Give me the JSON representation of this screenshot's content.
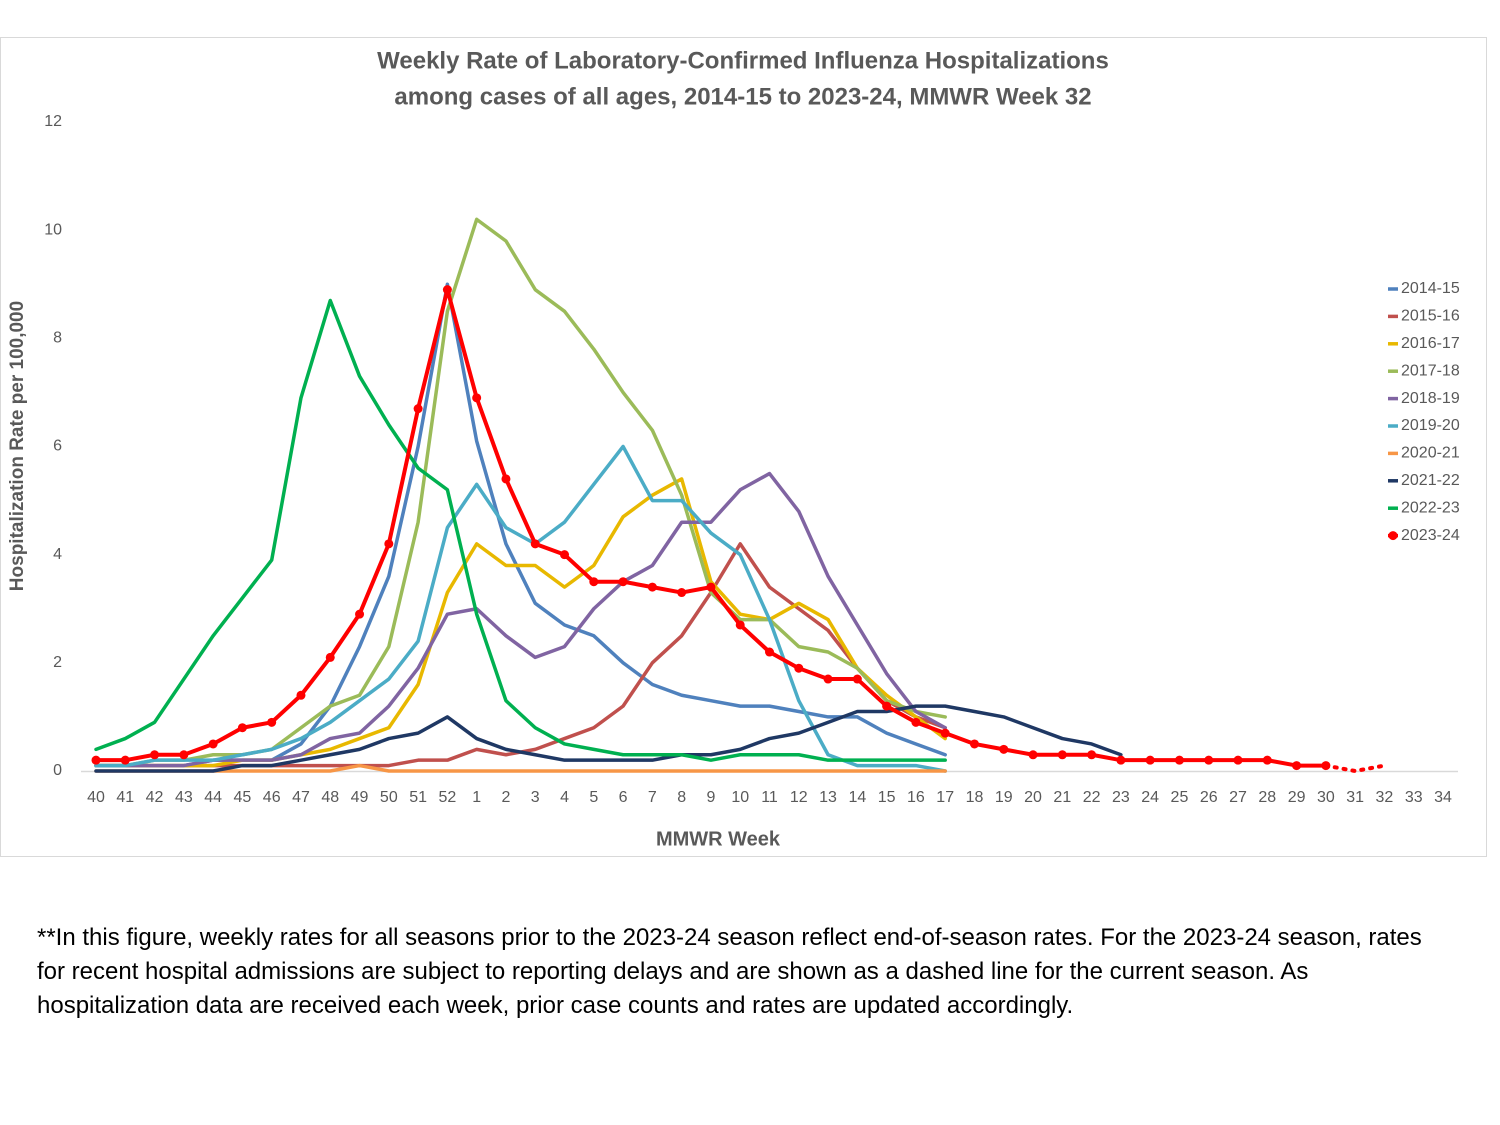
{
  "chart_data": {
    "type": "line",
    "title": [
      "Weekly Rate of Laboratory-Confirmed Influenza Hospitalizations",
      "among cases of all ages, 2014-15 to 2023-24, MMWR Week 32"
    ],
    "y_label": "Hospitalization Rate per 100,000",
    "x_label": "MMWR Week",
    "categories": [
      "40",
      "41",
      "42",
      "43",
      "44",
      "45",
      "46",
      "47",
      "48",
      "49",
      "50",
      "51",
      "52",
      "1",
      "2",
      "3",
      "4",
      "5",
      "6",
      "7",
      "8",
      "9",
      "10",
      "11",
      "12",
      "13",
      "14",
      "15",
      "16",
      "17",
      "18",
      "19",
      "20",
      "21",
      "22",
      "23",
      "24",
      "25",
      "26",
      "27",
      "28",
      "29",
      "30",
      "31",
      "32",
      "33",
      "34"
    ],
    "ylim": [
      0,
      12
    ],
    "yticks": [
      0,
      2,
      4,
      6,
      8,
      10,
      12
    ],
    "grid": false,
    "legend": "right",
    "series": [
      {
        "name": "2014-15",
        "color": "#4f81bd",
        "values": [
          0.1,
          0.1,
          0.1,
          0.1,
          0.2,
          0.2,
          0.2,
          0.5,
          1.2,
          2.3,
          3.6,
          6.0,
          9.0,
          6.1,
          4.2,
          3.1,
          2.7,
          2.5,
          2.0,
          1.6,
          1.4,
          1.3,
          1.2,
          1.2,
          1.1,
          1.0,
          1.0,
          0.7,
          0.5,
          0.3,
          null,
          null,
          null,
          null,
          null,
          null,
          null,
          null,
          null,
          null,
          null,
          null,
          null,
          null,
          null,
          null,
          null
        ]
      },
      {
        "name": "2015-16",
        "color": "#c0504d",
        "values": [
          0.1,
          0.1,
          0.1,
          0.1,
          0.1,
          0.1,
          0.1,
          0.1,
          0.1,
          0.1,
          0.1,
          0.2,
          0.2,
          0.4,
          0.3,
          0.4,
          0.6,
          0.8,
          1.2,
          2.0,
          2.5,
          3.3,
          4.2,
          3.4,
          3.0,
          2.6,
          1.9,
          1.3,
          1.0,
          0.8,
          null,
          null,
          null,
          null,
          null,
          null,
          null,
          null,
          null,
          null,
          null,
          null,
          null,
          null,
          null,
          null,
          null
        ]
      },
      {
        "name": "2016-17",
        "color": "#e8b800",
        "values": [
          0.1,
          0.1,
          0.1,
          0.1,
          0.1,
          0.2,
          0.2,
          0.3,
          0.4,
          0.6,
          0.8,
          1.6,
          3.3,
          4.2,
          3.8,
          3.8,
          3.4,
          3.8,
          4.7,
          5.1,
          5.4,
          3.5,
          2.9,
          2.8,
          3.1,
          2.8,
          1.9,
          1.4,
          1.0,
          0.6,
          null,
          null,
          null,
          null,
          null,
          null,
          null,
          null,
          null,
          null,
          null,
          null,
          null,
          null,
          null,
          null,
          null
        ]
      },
      {
        "name": "2017-18",
        "color": "#9bbb59",
        "values": [
          0.1,
          0.1,
          0.2,
          0.2,
          0.3,
          0.3,
          0.4,
          0.8,
          1.2,
          1.4,
          2.3,
          4.6,
          8.5,
          10.2,
          9.8,
          8.9,
          8.5,
          7.8,
          7.0,
          6.3,
          5.1,
          3.3,
          2.8,
          2.8,
          2.3,
          2.2,
          1.9,
          1.3,
          1.1,
          1.0,
          null,
          null,
          null,
          null,
          null,
          null,
          null,
          null,
          null,
          null,
          null,
          null,
          null,
          null,
          null,
          null,
          null
        ]
      },
      {
        "name": "2018-19",
        "color": "#8064a2",
        "values": [
          0.1,
          0.1,
          0.1,
          0.1,
          0.2,
          0.2,
          0.2,
          0.3,
          0.6,
          0.7,
          1.2,
          1.9,
          2.9,
          3.0,
          2.5,
          2.1,
          2.3,
          3.0,
          3.5,
          3.8,
          4.6,
          4.6,
          5.2,
          5.5,
          4.8,
          3.6,
          2.7,
          1.8,
          1.1,
          0.8,
          null,
          null,
          null,
          null,
          null,
          null,
          null,
          null,
          null,
          null,
          null,
          null,
          null,
          null,
          null,
          null,
          null
        ]
      },
      {
        "name": "2019-20",
        "color": "#4bacc6",
        "values": [
          0.1,
          0.1,
          0.2,
          0.2,
          0.2,
          0.3,
          0.4,
          0.6,
          0.9,
          1.3,
          1.7,
          2.4,
          4.5,
          5.3,
          4.5,
          4.2,
          4.6,
          5.3,
          6.0,
          5.0,
          5.0,
          4.4,
          4.0,
          2.8,
          1.3,
          0.3,
          0.1,
          0.1,
          0.1,
          0,
          null,
          null,
          null,
          null,
          null,
          null,
          null,
          null,
          null,
          null,
          null,
          null,
          null,
          null,
          null,
          null,
          null
        ]
      },
      {
        "name": "2020-21",
        "color": "#f79646",
        "values": [
          0,
          0,
          0,
          0,
          0,
          0,
          0,
          0,
          0,
          0.1,
          0,
          0,
          0,
          0,
          0,
          0,
          0,
          0,
          0,
          0,
          0,
          0,
          0,
          0,
          0,
          0,
          0,
          0,
          0,
          0,
          null,
          null,
          null,
          null,
          null,
          null,
          null,
          null,
          null,
          null,
          null,
          null,
          null,
          null,
          null,
          null,
          null
        ]
      },
      {
        "name": "2021-22",
        "color": "#1f3864",
        "values": [
          0,
          0,
          0,
          0,
          0,
          0.1,
          0.1,
          0.2,
          0.3,
          0.4,
          0.6,
          0.7,
          1.0,
          0.6,
          0.4,
          0.3,
          0.2,
          0.2,
          0.2,
          0.2,
          0.3,
          0.3,
          0.4,
          0.6,
          0.7,
          0.9,
          1.1,
          1.1,
          1.2,
          1.2,
          1.1,
          1.0,
          0.8,
          0.6,
          0.5,
          0.3,
          null,
          null,
          null,
          null,
          null,
          null,
          null,
          null,
          null,
          null,
          null
        ]
      },
      {
        "name": "2022-23",
        "color": "#00b050",
        "values": [
          0.4,
          0.6,
          0.9,
          1.7,
          2.5,
          3.2,
          3.9,
          6.9,
          8.7,
          7.3,
          6.4,
          5.6,
          5.2,
          2.9,
          1.3,
          0.8,
          0.5,
          0.4,
          0.3,
          0.3,
          0.3,
          0.2,
          0.3,
          0.3,
          0.3,
          0.2,
          0.2,
          0.2,
          0.2,
          0.2,
          null,
          null,
          null,
          null,
          null,
          null,
          null,
          null,
          null,
          null,
          null,
          null,
          null,
          null,
          null,
          null,
          null
        ]
      },
      {
        "name": "2023-24",
        "color": "#ff0000",
        "marker": true,
        "dashed_from": "30",
        "values": [
          0.2,
          0.2,
          0.3,
          0.3,
          0.5,
          0.8,
          0.9,
          1.4,
          2.1,
          2.9,
          4.2,
          6.7,
          8.9,
          6.9,
          5.4,
          4.2,
          4.0,
          3.5,
          3.5,
          3.4,
          3.3,
          3.4,
          2.7,
          2.2,
          1.9,
          1.7,
          1.7,
          1.2,
          0.9,
          0.7,
          0.5,
          0.4,
          0.3,
          0.3,
          0.3,
          0.2,
          0.2,
          0.2,
          0.2,
          0.2,
          0.2,
          0.1,
          0.1,
          0.0,
          0.1,
          null,
          null
        ]
      }
    ],
    "footnote": "**In this figure, weekly rates for all seasons prior to the 2023-24 season reflect end-of-season rates. For the 2023-24 season, rates for recent hospital admissions are subject to reporting delays and are shown as a dashed line for the current season. As hospitalization data are received each week, prior case counts and rates are updated accordingly."
  }
}
